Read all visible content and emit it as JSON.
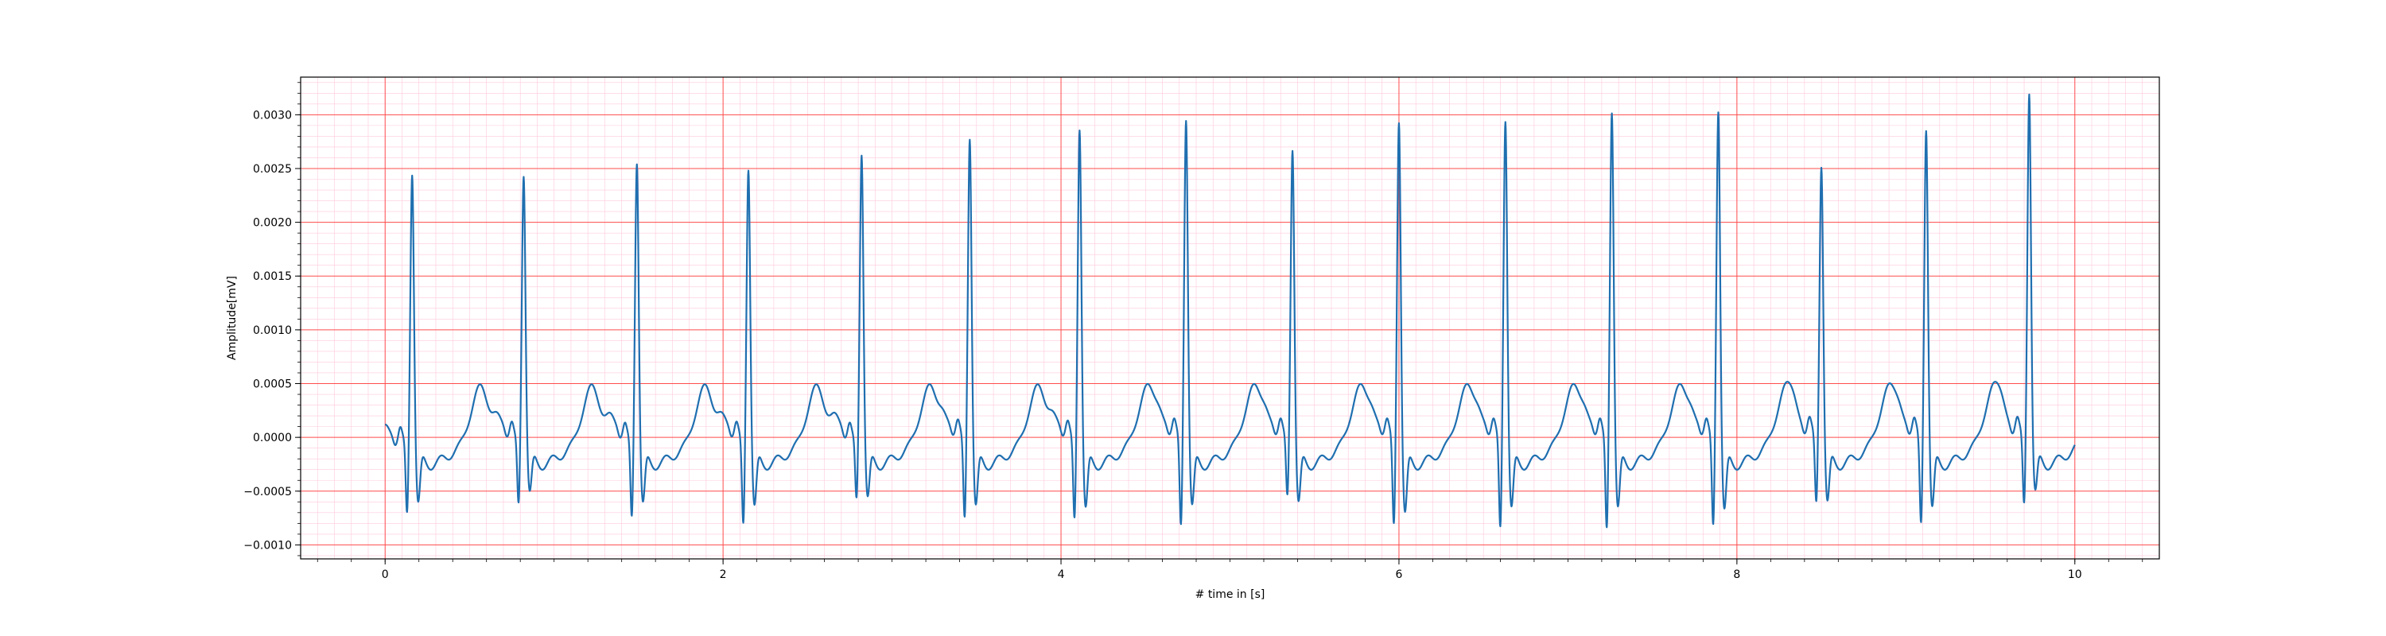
{
  "chart_data": {
    "type": "line",
    "title": "",
    "xlabel": "# time in [s]",
    "ylabel": "Amplitude[mV]",
    "xlim": [
      -0.5,
      10.5
    ],
    "ylim": [
      -0.00113,
      0.00335
    ],
    "xticks": [
      0,
      2,
      4,
      6,
      8,
      10
    ],
    "xtick_labels": [
      "0",
      "2",
      "4",
      "6",
      "8",
      "10"
    ],
    "yticks": [
      -0.001,
      -0.0005,
      0.0,
      0.0005,
      0.001,
      0.0015,
      0.002,
      0.0025,
      0.003
    ],
    "ytick_labels": [
      "−0.0010",
      "−0.0005",
      "0.0000",
      "0.0005",
      "0.0010",
      "0.0015",
      "0.0020",
      "0.0025",
      "0.0030"
    ],
    "grid": true,
    "grid_major_color": "#ff4d4d",
    "grid_minor_color": "#ffc8dc",
    "line_color": "#1f6fb0",
    "beats": [
      {
        "t": 0.16,
        "r": 0.00245,
        "q": -0.00072,
        "s": -0.00055
      },
      {
        "t": 0.82,
        "r": 0.00243,
        "q": -0.00065,
        "s": -0.00045
      },
      {
        "t": 1.49,
        "r": 0.00255,
        "q": -0.00077,
        "s": -0.00055
      },
      {
        "t": 2.15,
        "r": 0.00249,
        "q": -0.00084,
        "s": -0.00058
      },
      {
        "t": 2.82,
        "r": 0.00263,
        "q": -0.0006,
        "s": -0.0005
      },
      {
        "t": 3.46,
        "r": 0.00277,
        "q": -0.0008,
        "s": -0.00058
      },
      {
        "t": 4.11,
        "r": 0.00286,
        "q": -0.0008,
        "s": -0.0006
      },
      {
        "t": 4.74,
        "r": 0.00294,
        "q": -0.00088,
        "s": -0.00058
      },
      {
        "t": 5.37,
        "r": 0.00266,
        "q": -0.0006,
        "s": -0.00055
      },
      {
        "t": 6.0,
        "r": 0.00292,
        "q": -0.00087,
        "s": -0.00065
      },
      {
        "t": 6.63,
        "r": 0.00293,
        "q": -0.0009,
        "s": -0.0006
      },
      {
        "t": 7.26,
        "r": 0.00301,
        "q": -0.00091,
        "s": -0.0006
      },
      {
        "t": 7.89,
        "r": 0.00302,
        "q": -0.00088,
        "s": -0.00062
      },
      {
        "t": 8.5,
        "r": 0.00249,
        "q": -0.00068,
        "s": -0.00055
      },
      {
        "t": 9.12,
        "r": 0.00284,
        "q": -0.00087,
        "s": -0.0006
      },
      {
        "t": 9.73,
        "r": 0.00317,
        "q": -0.0007,
        "s": -0.00045
      }
    ],
    "x_end": 10.0
  }
}
